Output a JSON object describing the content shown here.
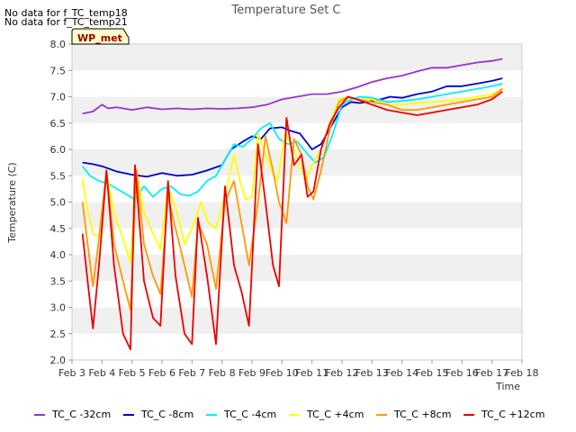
{
  "notices": [
    "No data for f_TC_temp18",
    "No data for f_TC_temp21"
  ],
  "site_badge": "WP_met",
  "chart_data": {
    "type": "line",
    "title": "Temperature Set C",
    "xlabel": "Time",
    "ylabel": "Temperature (C)",
    "xlim": [
      3,
      18
    ],
    "ylim": [
      2.0,
      8.0
    ],
    "x_ticks": [
      3,
      4,
      5,
      6,
      7,
      8,
      9,
      10,
      11,
      12,
      13,
      14,
      15,
      16,
      17,
      18
    ],
    "x_tick_labels": [
      "Feb 3",
      "Feb 4",
      "Feb 5",
      "Feb 6",
      "Feb 7",
      "Feb 8",
      "Feb 9",
      "Feb 10",
      "Feb 11",
      "Feb 12",
      "Feb 13",
      "Feb 14",
      "Feb 15",
      "Feb 16",
      "Feb 17",
      "Feb 18"
    ],
    "y_ticks": [
      2.0,
      2.5,
      3.0,
      3.5,
      4.0,
      4.5,
      5.0,
      5.5,
      6.0,
      6.5,
      7.0,
      7.5,
      8.0
    ],
    "y_tick_labels": [
      "2.0",
      "2.5",
      "3.0",
      "3.5",
      "4.0",
      "4.5",
      "5.0",
      "5.5",
      "6.0",
      "6.5",
      "7.0",
      "7.5",
      "8.0"
    ],
    "grid": "horizontal bands",
    "legend_position": "bottom",
    "series": [
      {
        "name": "TC_C -32cm",
        "color": "#9933cc",
        "x": [
          3.35,
          3.7,
          4.0,
          4.2,
          4.5,
          5.0,
          5.5,
          6.0,
          6.5,
          7.0,
          7.5,
          8.0,
          8.5,
          9.0,
          9.5,
          10.0,
          10.5,
          11.0,
          11.5,
          12.0,
          12.5,
          13.0,
          13.5,
          14.0,
          14.5,
          15.0,
          15.5,
          16.0,
          16.5,
          17.0,
          17.35
        ],
        "y": [
          6.68,
          6.72,
          6.85,
          6.78,
          6.8,
          6.75,
          6.8,
          6.76,
          6.78,
          6.76,
          6.78,
          6.77,
          6.78,
          6.8,
          6.85,
          6.95,
          7.0,
          7.05,
          7.05,
          7.1,
          7.18,
          7.28,
          7.35,
          7.4,
          7.48,
          7.55,
          7.55,
          7.6,
          7.65,
          7.68,
          7.72
        ]
      },
      {
        "name": "TC_C -8cm",
        "color": "#0000cc",
        "x": [
          3.35,
          3.7,
          4.0,
          4.5,
          5.0,
          5.5,
          6.0,
          6.5,
          7.0,
          7.5,
          8.0,
          8.3,
          8.7,
          9.0,
          9.3,
          9.6,
          10.0,
          10.3,
          10.6,
          11.0,
          11.3,
          11.6,
          12.0,
          12.3,
          12.6,
          13.0,
          13.3,
          13.6,
          14.0,
          14.5,
          15.0,
          15.5,
          16.0,
          16.5,
          17.0,
          17.35
        ],
        "y": [
          5.75,
          5.72,
          5.68,
          5.58,
          5.52,
          5.48,
          5.55,
          5.5,
          5.52,
          5.6,
          5.7,
          6.0,
          6.15,
          6.25,
          6.2,
          6.4,
          6.42,
          6.35,
          6.3,
          6.0,
          6.1,
          6.4,
          6.8,
          6.9,
          6.88,
          6.92,
          6.95,
          7.0,
          6.98,
          7.05,
          7.1,
          7.2,
          7.2,
          7.25,
          7.3,
          7.35
        ]
      },
      {
        "name": "TC_C -4cm",
        "color": "#00eeff",
        "x": [
          3.35,
          3.6,
          3.9,
          4.2,
          4.5,
          4.8,
          5.1,
          5.4,
          5.7,
          6.0,
          6.3,
          6.6,
          6.9,
          7.2,
          7.5,
          7.8,
          8.1,
          8.4,
          8.7,
          9.0,
          9.3,
          9.6,
          9.9,
          10.2,
          10.5,
          10.8,
          11.1,
          11.4,
          11.7,
          12.0,
          12.3,
          12.6,
          13.0,
          13.5,
          14.0,
          14.5,
          15.0,
          15.5,
          16.0,
          16.5,
          17.0,
          17.35
        ],
        "y": [
          5.68,
          5.5,
          5.4,
          5.35,
          5.25,
          5.15,
          5.05,
          5.3,
          5.1,
          5.25,
          5.3,
          5.15,
          5.12,
          5.2,
          5.4,
          5.5,
          5.8,
          6.1,
          6.05,
          6.2,
          6.4,
          6.5,
          6.2,
          6.1,
          6.15,
          5.95,
          5.75,
          5.85,
          6.3,
          6.85,
          6.95,
          7.0,
          6.98,
          6.9,
          6.92,
          6.95,
          7.0,
          7.05,
          7.1,
          7.15,
          7.2,
          7.25
        ]
      },
      {
        "name": "TC_C +4cm",
        "color": "#ffff00",
        "x": [
          3.35,
          3.5,
          3.7,
          3.9,
          4.15,
          4.4,
          4.7,
          4.95,
          5.15,
          5.4,
          5.7,
          5.95,
          6.2,
          6.5,
          6.75,
          7.0,
          7.3,
          7.55,
          7.8,
          8.1,
          8.4,
          8.6,
          8.8,
          9.0,
          9.2,
          9.45,
          9.65,
          9.85,
          10.1,
          10.3,
          10.6,
          10.8,
          11.0,
          11.3,
          11.6,
          11.9,
          12.2,
          12.5,
          13.0,
          13.5,
          14.0,
          14.5,
          15.0,
          15.5,
          16.0,
          16.5,
          17.0,
          17.35
        ],
        "y": [
          5.45,
          4.9,
          4.4,
          4.35,
          5.55,
          4.8,
          4.3,
          3.85,
          5.55,
          4.8,
          4.4,
          4.1,
          5.3,
          4.8,
          4.2,
          4.5,
          5.0,
          4.6,
          4.5,
          5.1,
          5.9,
          5.4,
          5.05,
          5.1,
          6.3,
          5.9,
          5.6,
          5.4,
          6.3,
          6.1,
          5.7,
          5.4,
          5.7,
          6.0,
          6.5,
          6.95,
          7.0,
          6.95,
          6.95,
          6.85,
          6.85,
          6.88,
          6.9,
          6.92,
          6.95,
          7.0,
          7.05,
          7.15
        ]
      },
      {
        "name": "TC_C +8cm",
        "color": "#ff9900",
        "x": [
          3.35,
          3.5,
          3.7,
          3.9,
          4.15,
          4.4,
          4.7,
          4.95,
          5.15,
          5.4,
          5.7,
          5.95,
          6.2,
          6.45,
          6.75,
          7.0,
          7.2,
          7.5,
          7.8,
          8.1,
          8.4,
          8.65,
          8.9,
          9.2,
          9.45,
          9.7,
          9.9,
          10.15,
          10.4,
          10.65,
          10.85,
          11.05,
          11.3,
          11.6,
          11.9,
          12.2,
          12.5,
          13.0,
          13.5,
          14.0,
          14.5,
          15.0,
          15.5,
          16.0,
          16.5,
          17.0,
          17.35
        ],
        "y": [
          5.0,
          4.3,
          3.4,
          4.3,
          5.6,
          4.2,
          3.5,
          2.95,
          5.6,
          4.2,
          3.6,
          3.25,
          5.1,
          4.5,
          3.8,
          3.2,
          4.6,
          4.2,
          3.35,
          5.0,
          5.4,
          4.6,
          3.8,
          5.0,
          6.25,
          5.6,
          5.0,
          4.6,
          6.2,
          5.9,
          5.3,
          5.05,
          5.6,
          6.4,
          6.9,
          7.0,
          6.95,
          6.9,
          6.85,
          6.75,
          6.75,
          6.8,
          6.85,
          6.9,
          6.95,
          7.0,
          7.15
        ]
      },
      {
        "name": "TC_C +12cm",
        "color": "#ee0000",
        "x": [
          3.35,
          3.5,
          3.7,
          3.9,
          4.15,
          4.4,
          4.7,
          4.95,
          5.1,
          5.4,
          5.7,
          5.95,
          6.2,
          6.45,
          6.75,
          7.0,
          7.2,
          7.5,
          7.8,
          8.1,
          8.4,
          8.65,
          8.9,
          9.2,
          9.45,
          9.7,
          9.9,
          10.15,
          10.4,
          10.65,
          10.85,
          11.05,
          11.3,
          11.6,
          11.9,
          12.2,
          12.5,
          13.0,
          13.5,
          14.0,
          14.5,
          15.0,
          15.5,
          16.0,
          16.5,
          17.0,
          17.35
        ],
        "y": [
          4.4,
          3.6,
          2.6,
          3.8,
          5.6,
          3.8,
          2.5,
          2.2,
          5.7,
          3.5,
          2.8,
          2.65,
          5.4,
          3.6,
          2.5,
          2.3,
          4.7,
          3.6,
          2.3,
          5.3,
          3.8,
          3.3,
          2.65,
          6.1,
          5.0,
          3.8,
          3.4,
          6.6,
          5.7,
          5.9,
          5.1,
          5.2,
          6.0,
          6.5,
          6.8,
          7.0,
          6.95,
          6.85,
          6.75,
          6.7,
          6.65,
          6.7,
          6.75,
          6.8,
          6.85,
          6.95,
          7.1
        ]
      }
    ]
  }
}
